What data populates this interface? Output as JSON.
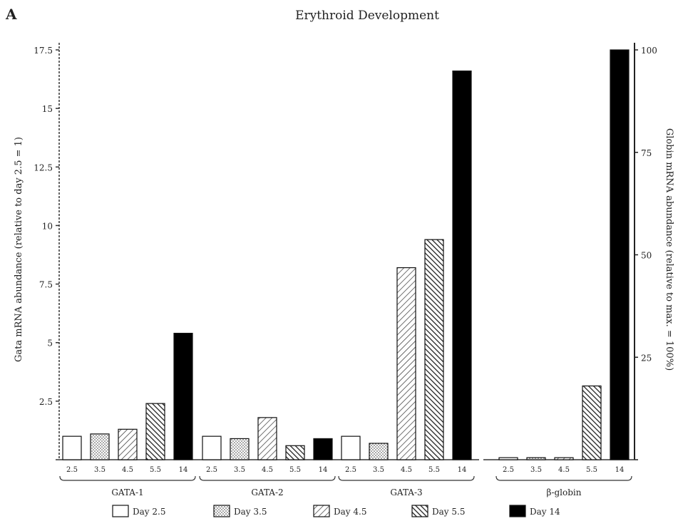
{
  "panel_label": "A",
  "chart_data": {
    "type": "bar",
    "title": "Erythroid Development",
    "left_axis": {
      "label": "Gata mRNA abundance (relative to day 2.5 = 1)",
      "ylim": [
        0,
        17.5
      ],
      "ticks": [
        "0",
        "2.5",
        "5",
        "7.5",
        "10",
        "12.5",
        "15",
        "17.5"
      ]
    },
    "right_axis": {
      "label": "Globin mRNA abundance (relative to max. = 100%)",
      "ylim": [
        0,
        100
      ],
      "ticks": [
        "0",
        "25",
        "50",
        "75",
        "100"
      ]
    },
    "groups": [
      {
        "name": "GATA-1",
        "axis": "left",
        "bar_labels": [
          "2.5",
          "3.5",
          "4.5",
          "5.5",
          "14"
        ],
        "values": [
          1.0,
          1.1,
          1.3,
          2.4,
          5.4
        ]
      },
      {
        "name": "GATA-2",
        "axis": "left",
        "bar_labels": [
          "2.5",
          "3.5",
          "4.5",
          "5.5",
          "14"
        ],
        "values": [
          1.0,
          0.9,
          1.8,
          0.6,
          0.9
        ]
      },
      {
        "name": "GATA-3",
        "axis": "left",
        "bar_labels": [
          "2.5",
          "3.5",
          "4.5",
          "5.5",
          "14"
        ],
        "values": [
          1.0,
          0.7,
          8.2,
          9.4,
          16.6
        ]
      },
      {
        "name": "β-globin",
        "axis": "right",
        "bar_labels": [
          "2.5",
          "3.5",
          "4.5",
          "5.5",
          "14"
        ],
        "values": [
          0.5,
          0.5,
          0.5,
          18,
          100
        ]
      }
    ],
    "series": [
      {
        "name": "Day 2.5",
        "pattern": "empty"
      },
      {
        "name": "Day 3.5",
        "pattern": "dots"
      },
      {
        "name": "Day 4.5",
        "pattern": "diag-light"
      },
      {
        "name": "Day 5.5",
        "pattern": "diag-dense"
      },
      {
        "name": "Day 14",
        "pattern": "solid"
      }
    ],
    "legend_position": "bottom",
    "grid": false
  }
}
